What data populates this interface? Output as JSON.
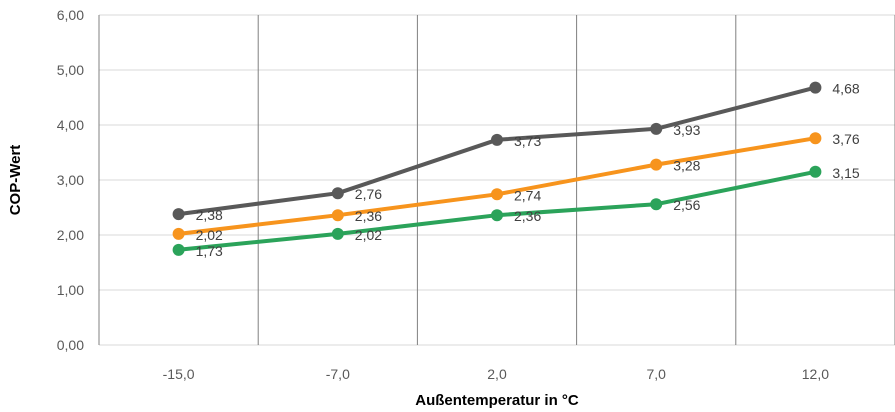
{
  "chart_data": {
    "type": "line",
    "xlabel": "Außentemperatur in °C",
    "ylabel": "COP-Wert",
    "categories": [
      "-15,0",
      "-7,0",
      "2,0",
      "7,0",
      "12,0"
    ],
    "ylim": [
      0,
      6
    ],
    "yticks": [
      "0,00",
      "1,00",
      "2,00",
      "3,00",
      "4,00",
      "5,00",
      "6,00"
    ],
    "grid": {
      "horizontal": true,
      "vertical": true
    },
    "legend": "none",
    "series": [
      {
        "color": "#595959",
        "values": [
          2.38,
          2.76,
          3.73,
          3.93,
          4.68
        ],
        "labels": [
          "2,38",
          "2,76",
          "3,73",
          "3,93",
          "4,68"
        ]
      },
      {
        "color": "#F7941D",
        "values": [
          2.02,
          2.36,
          2.74,
          3.28,
          3.76
        ],
        "labels": [
          "2,02",
          "2,36",
          "2,74",
          "3,28",
          "3,76"
        ]
      },
      {
        "color": "#2BA35A",
        "values": [
          1.73,
          2.02,
          2.36,
          2.56,
          3.15
        ],
        "labels": [
          "1,73",
          "2,02",
          "2,36",
          "2,56",
          "3,15"
        ]
      }
    ]
  }
}
